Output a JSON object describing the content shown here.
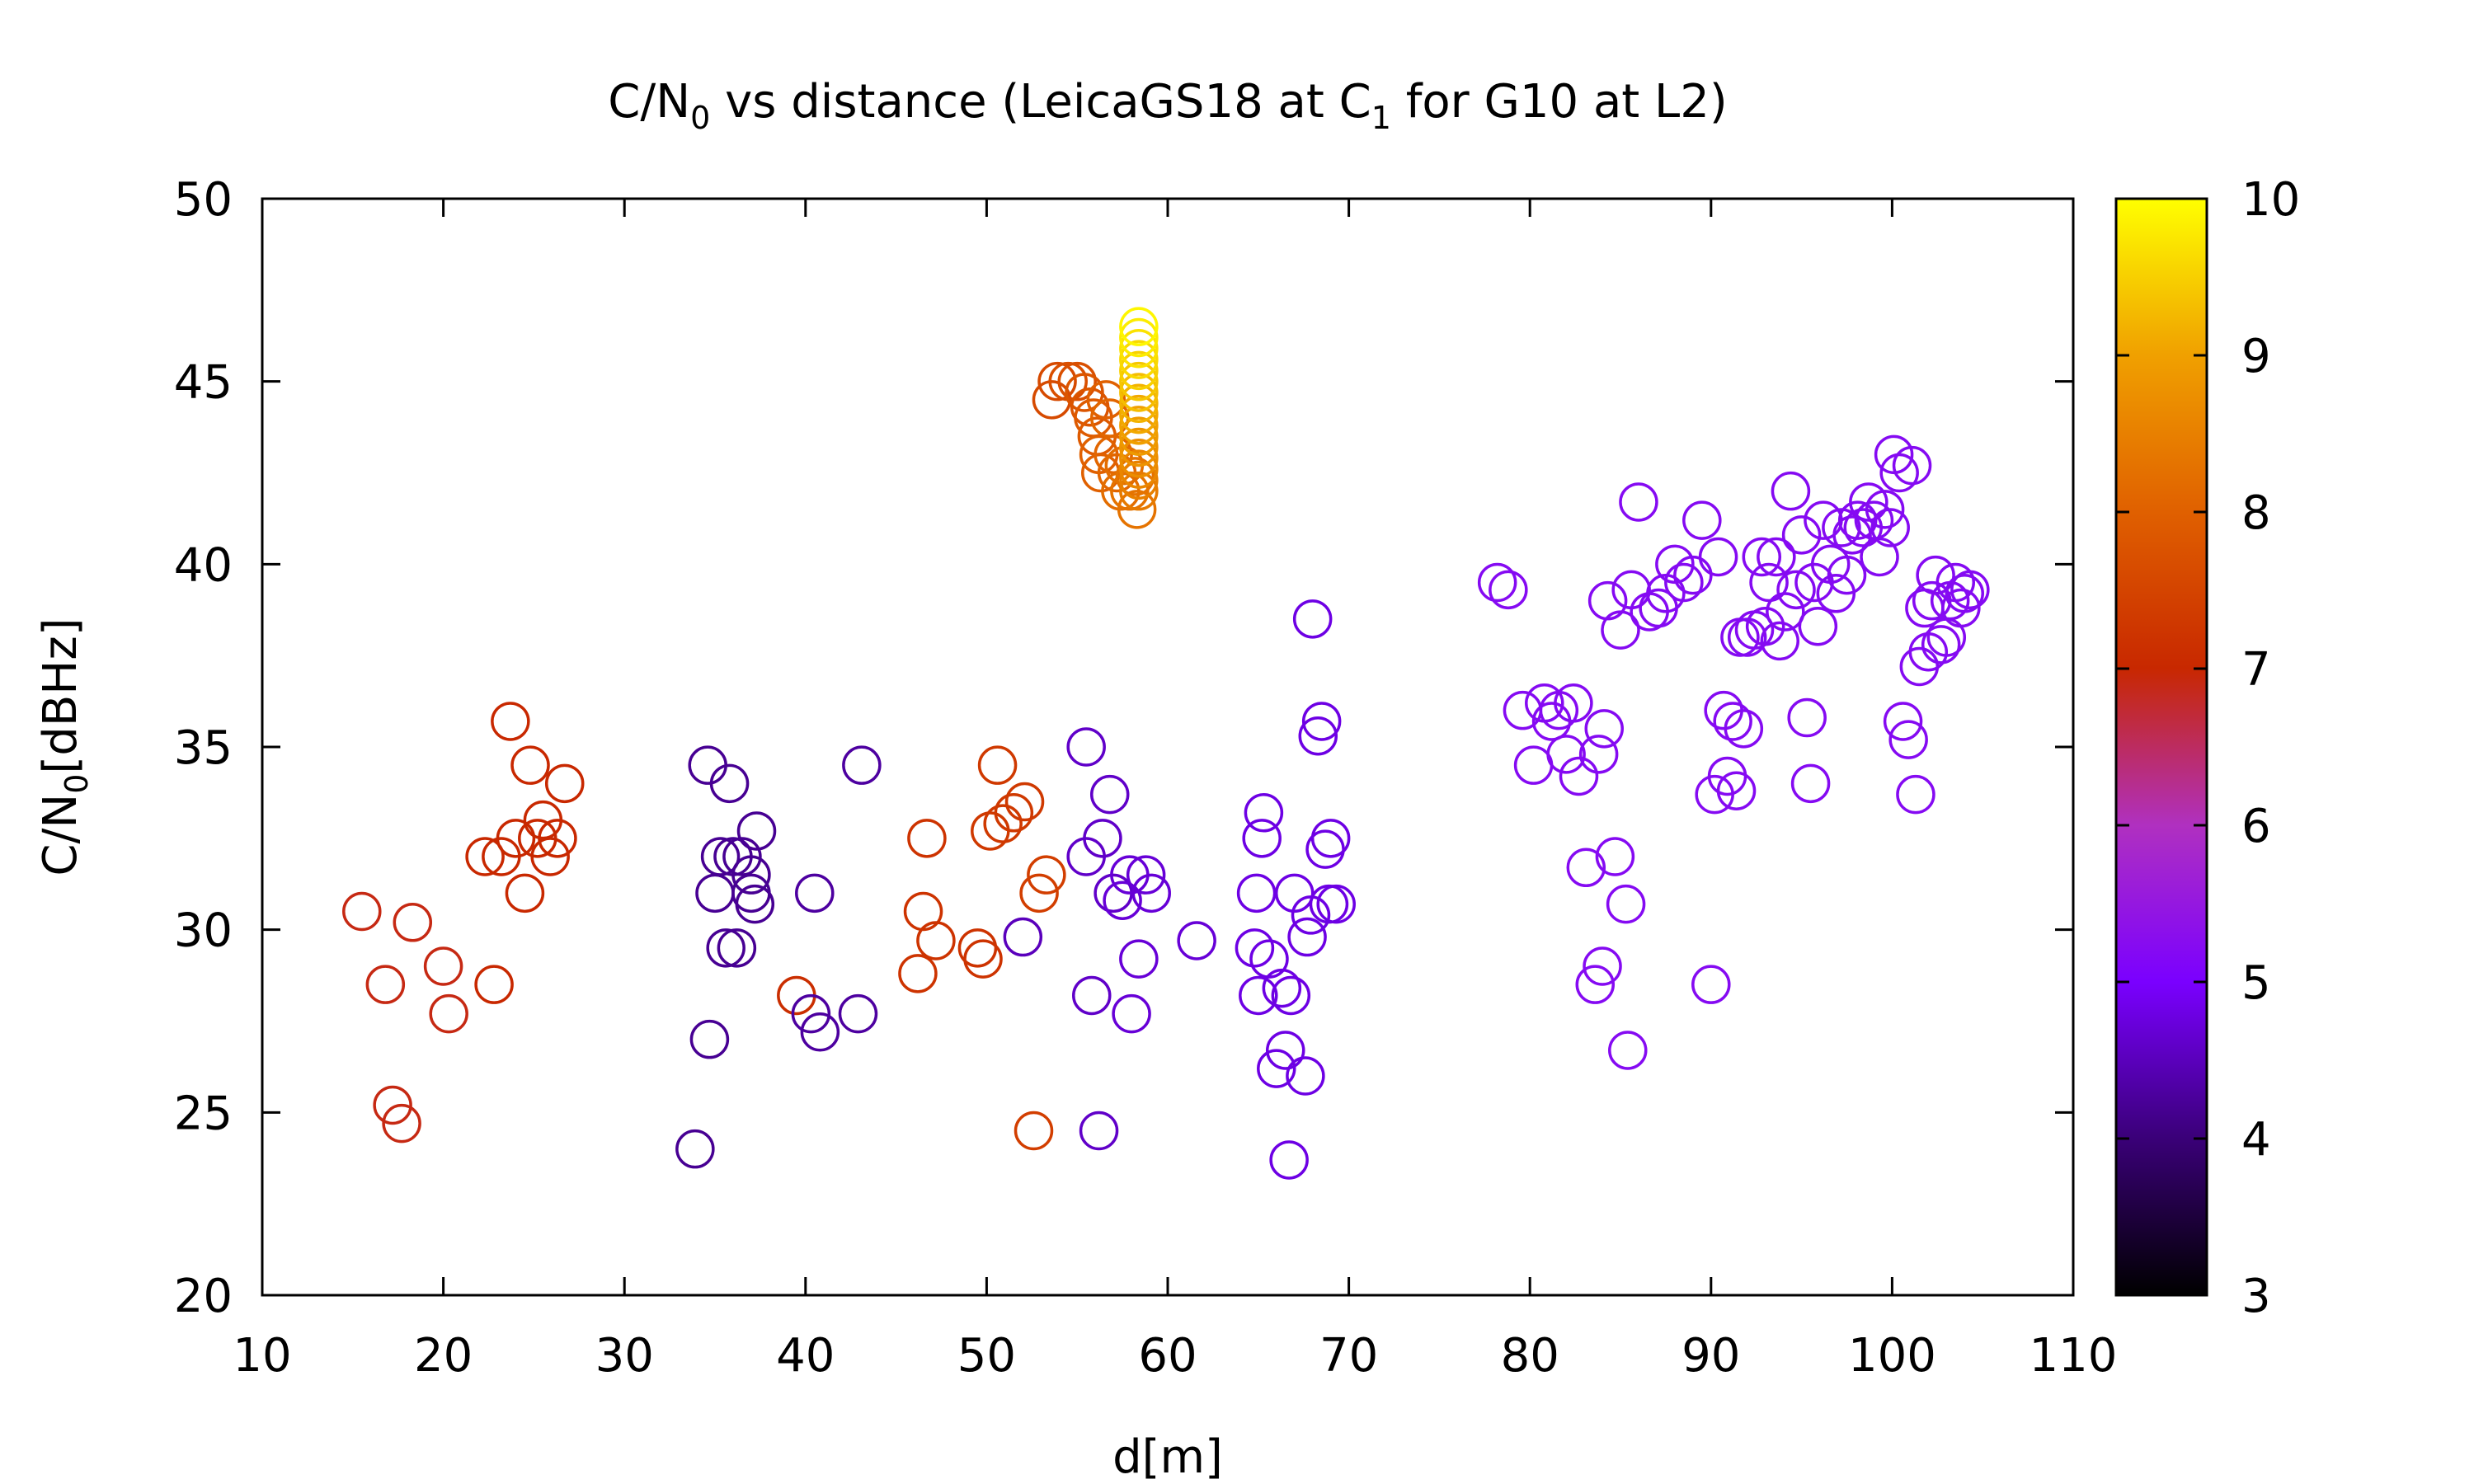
{
  "chart_data": {
    "type": "scatter",
    "title": {
      "prefix": "C/N",
      "sub0": "0",
      "mid": " vs distance (LeicaGS18 at C",
      "sub1": "1",
      "suffix": " for G10 at L2)"
    },
    "xlabel": "d[m]",
    "ylabel": {
      "prefix": "C/N",
      "sub": "0",
      "suffix": "[dBHz]"
    },
    "xlim": [
      10,
      110
    ],
    "ylim": [
      20,
      50
    ],
    "xticks": [
      "10",
      "20",
      "30",
      "40",
      "50",
      "60",
      "70",
      "80",
      "90",
      "100",
      "110"
    ],
    "yticks": [
      "20",
      "25",
      "30",
      "35",
      "40",
      "45",
      "50"
    ],
    "colorbar": {
      "range": [
        3,
        10
      ],
      "ticks": [
        "3",
        "4",
        "5",
        "6",
        "7",
        "8",
        "9",
        "10"
      ],
      "palette": [
        "#000000",
        "#3a0078",
        "#7a00ff",
        "#b030c0",
        "#c82800",
        "#e06000",
        "#f0a000",
        "#ffff00"
      ]
    },
    "marker": "open-circle",
    "grid": false,
    "points": [
      [
        15.5,
        30.5,
        6.9
      ],
      [
        16.8,
        28.5,
        6.9
      ],
      [
        17.2,
        25.2,
        6.9
      ],
      [
        17.7,
        24.7,
        6.9
      ],
      [
        18.3,
        30.2,
        6.9
      ],
      [
        20.0,
        29.0,
        6.9
      ],
      [
        20.3,
        27.7,
        6.9
      ],
      [
        22.3,
        32.0,
        7.0
      ],
      [
        22.8,
        28.5,
        7.0
      ],
      [
        23.2,
        32.0,
        7.0
      ],
      [
        23.7,
        35.7,
        7.0
      ],
      [
        24.0,
        32.5,
        7.0
      ],
      [
        24.5,
        31.0,
        7.0
      ],
      [
        24.8,
        34.5,
        7.0
      ],
      [
        25.2,
        32.5,
        7.0
      ],
      [
        25.5,
        33.0,
        7.0
      ],
      [
        25.9,
        32.0,
        7.0
      ],
      [
        26.3,
        32.5,
        7.0
      ],
      [
        26.7,
        34.0,
        7.0
      ],
      [
        33.9,
        24.0,
        4.2
      ],
      [
        34.6,
        34.5,
        4.2
      ],
      [
        34.7,
        27.0,
        4.2
      ],
      [
        35.0,
        31.0,
        4.2
      ],
      [
        35.3,
        32.0,
        4.2
      ],
      [
        35.6,
        29.5,
        4.2
      ],
      [
        35.8,
        34.0,
        4.2
      ],
      [
        36.0,
        32.0,
        4.2
      ],
      [
        36.2,
        29.5,
        4.2
      ],
      [
        36.5,
        32.0,
        4.2
      ],
      [
        37.0,
        31.5,
        4.2
      ],
      [
        37.0,
        31.0,
        4.2
      ],
      [
        37.2,
        30.7,
        4.2
      ],
      [
        37.3,
        32.7,
        4.2
      ],
      [
        39.5,
        28.2,
        7.1
      ],
      [
        40.3,
        27.7,
        4.3
      ],
      [
        40.5,
        31.0,
        4.3
      ],
      [
        40.8,
        27.2,
        4.3
      ],
      [
        42.9,
        27.7,
        4.3
      ],
      [
        43.1,
        34.5,
        4.3
      ],
      [
        46.2,
        28.8,
        7.2
      ],
      [
        46.5,
        30.5,
        7.2
      ],
      [
        46.7,
        32.5,
        7.2
      ],
      [
        47.2,
        29.7,
        7.2
      ],
      [
        49.5,
        29.5,
        7.2
      ],
      [
        49.8,
        29.2,
        7.2
      ],
      [
        50.2,
        32.7,
        7.3
      ],
      [
        50.6,
        34.5,
        7.3
      ],
      [
        50.9,
        32.9,
        7.3
      ],
      [
        51.5,
        33.2,
        7.3
      ],
      [
        52.1,
        33.5,
        7.3
      ],
      [
        52.0,
        29.8,
        4.5
      ],
      [
        52.6,
        24.5,
        7.4
      ],
      [
        52.9,
        31.0,
        7.4
      ],
      [
        53.3,
        31.5,
        7.4
      ],
      [
        53.6,
        44.5,
        7.6
      ],
      [
        53.9,
        45.0,
        7.6
      ],
      [
        54.5,
        45.0,
        7.7
      ],
      [
        55.0,
        45.0,
        7.7
      ],
      [
        55.4,
        44.7,
        7.8
      ],
      [
        55.7,
        44.3,
        7.8
      ],
      [
        55.9,
        44.0,
        7.9
      ],
      [
        56.1,
        43.5,
        7.9
      ],
      [
        56.2,
        43.0,
        8.0
      ],
      [
        56.3,
        42.5,
        8.0
      ],
      [
        56.6,
        44.5,
        8.0
      ],
      [
        56.8,
        44.0,
        8.1
      ],
      [
        57.0,
        43.0,
        8.1
      ],
      [
        57.2,
        42.5,
        8.1
      ],
      [
        57.4,
        42.0,
        8.2
      ],
      [
        57.6,
        42.7,
        8.2
      ],
      [
        57.9,
        42.0,
        8.3
      ],
      [
        58.2,
        42.4,
        8.3
      ],
      [
        58.3,
        41.5,
        8.3
      ],
      [
        58.4,
        42.0,
        8.4
      ],
      [
        58.4,
        42.3,
        8.5
      ],
      [
        58.4,
        42.6,
        8.6
      ],
      [
        58.4,
        42.9,
        8.7
      ],
      [
        58.4,
        43.2,
        8.8
      ],
      [
        58.4,
        43.5,
        8.9
      ],
      [
        58.4,
        43.8,
        9.0
      ],
      [
        58.4,
        44.1,
        9.1
      ],
      [
        58.4,
        44.4,
        9.2
      ],
      [
        58.4,
        44.7,
        9.3
      ],
      [
        58.4,
        45.0,
        9.4
      ],
      [
        58.4,
        45.3,
        9.5
      ],
      [
        58.4,
        45.6,
        9.6
      ],
      [
        58.4,
        45.9,
        9.7
      ],
      [
        58.4,
        46.2,
        9.8
      ],
      [
        58.4,
        46.5,
        9.9
      ],
      [
        55.5,
        35.0,
        4.6
      ],
      [
        55.5,
        32.0,
        4.6
      ],
      [
        55.8,
        28.2,
        4.6
      ],
      [
        56.2,
        24.5,
        4.6
      ],
      [
        56.4,
        32.5,
        4.6
      ],
      [
        56.8,
        33.7,
        4.6
      ],
      [
        57.0,
        31.0,
        4.6
      ],
      [
        57.5,
        30.8,
        4.7
      ],
      [
        57.9,
        31.5,
        4.7
      ],
      [
        58.0,
        27.7,
        4.7
      ],
      [
        58.4,
        29.2,
        4.7
      ],
      [
        58.8,
        31.5,
        4.7
      ],
      [
        59.1,
        31.0,
        4.7
      ],
      [
        61.6,
        29.7,
        4.7
      ],
      [
        64.8,
        29.5,
        4.8
      ],
      [
        64.9,
        31.0,
        4.8
      ],
      [
        65.0,
        28.2,
        4.8
      ],
      [
        65.2,
        32.5,
        4.8
      ],
      [
        65.3,
        33.2,
        4.8
      ],
      [
        65.6,
        29.2,
        4.8
      ],
      [
        66.0,
        26.2,
        4.8
      ],
      [
        66.3,
        28.4,
        4.8
      ],
      [
        66.5,
        26.7,
        4.8
      ],
      [
        66.7,
        23.7,
        4.8
      ],
      [
        66.8,
        28.2,
        4.8
      ],
      [
        67.0,
        31.0,
        4.8
      ],
      [
        67.6,
        26.0,
        4.8
      ],
      [
        67.7,
        29.8,
        4.8
      ],
      [
        67.9,
        30.4,
        4.8
      ],
      [
        68.0,
        38.5,
        4.8
      ],
      [
        68.3,
        35.3,
        4.8
      ],
      [
        68.5,
        35.7,
        4.8
      ],
      [
        68.7,
        32.2,
        4.8
      ],
      [
        68.9,
        30.7,
        4.8
      ],
      [
        69.0,
        32.5,
        4.8
      ],
      [
        69.3,
        30.7,
        4.8
      ],
      [
        78.2,
        39.5,
        5.2
      ],
      [
        78.8,
        39.3,
        5.2
      ],
      [
        79.6,
        36.0,
        5.2
      ],
      [
        80.2,
        34.5,
        5.2
      ],
      [
        80.8,
        36.2,
        5.2
      ],
      [
        81.2,
        35.7,
        5.2
      ],
      [
        81.6,
        36.0,
        5.2
      ],
      [
        82.0,
        34.8,
        5.2
      ],
      [
        82.4,
        36.2,
        5.2
      ],
      [
        82.7,
        34.2,
        5.2
      ],
      [
        83.1,
        31.7,
        5.2
      ],
      [
        83.6,
        28.5,
        5.2
      ],
      [
        83.8,
        34.8,
        5.2
      ],
      [
        84.0,
        29.0,
        5.2
      ],
      [
        84.1,
        35.5,
        5.2
      ],
      [
        84.3,
        39.0,
        5.2
      ],
      [
        84.7,
        32.0,
        5.2
      ],
      [
        85.0,
        38.2,
        5.2
      ],
      [
        85.3,
        30.7,
        5.2
      ],
      [
        85.4,
        26.7,
        5.2
      ],
      [
        85.6,
        39.3,
        5.2
      ],
      [
        86.0,
        41.7,
        5.2
      ],
      [
        86.6,
        38.7,
        5.2
      ],
      [
        87.1,
        38.8,
        5.2
      ],
      [
        87.5,
        39.2,
        5.2
      ],
      [
        88.0,
        40.0,
        5.2
      ],
      [
        88.5,
        39.5,
        5.2
      ],
      [
        89.0,
        39.7,
        5.2
      ],
      [
        89.5,
        41.2,
        5.2
      ],
      [
        90.0,
        28.5,
        5.2
      ],
      [
        90.2,
        33.7,
        5.2
      ],
      [
        90.4,
        40.2,
        5.2
      ],
      [
        90.7,
        36.0,
        5.2
      ],
      [
        90.9,
        34.2,
        5.2
      ],
      [
        91.2,
        35.7,
        5.2
      ],
      [
        91.4,
        33.8,
        5.2
      ],
      [
        91.6,
        38.0,
        5.2
      ],
      [
        91.8,
        35.5,
        5.2
      ],
      [
        92.0,
        38.0,
        5.2
      ],
      [
        92.4,
        38.2,
        5.2
      ],
      [
        92.8,
        40.2,
        5.2
      ],
      [
        93.0,
        38.3,
        5.2
      ],
      [
        93.2,
        39.5,
        5.2
      ],
      [
        93.6,
        40.2,
        5.2
      ],
      [
        93.8,
        37.9,
        5.2
      ],
      [
        94.1,
        38.7,
        5.2
      ],
      [
        94.4,
        42.0,
        5.2
      ],
      [
        94.7,
        39.3,
        5.2
      ],
      [
        95.0,
        40.8,
        5.2
      ],
      [
        95.3,
        35.8,
        5.2
      ],
      [
        95.5,
        34.0,
        5.2
      ],
      [
        95.7,
        39.5,
        5.2
      ],
      [
        95.9,
        38.3,
        5.2
      ],
      [
        96.2,
        41.2,
        5.2
      ],
      [
        96.6,
        40.0,
        5.2
      ],
      [
        96.9,
        39.2,
        5.2
      ],
      [
        97.2,
        41.0,
        5.2
      ],
      [
        97.5,
        39.7,
        5.2
      ],
      [
        97.8,
        40.8,
        5.2
      ],
      [
        98.1,
        41.2,
        5.2
      ],
      [
        98.4,
        41.0,
        5.2
      ],
      [
        98.7,
        41.7,
        5.2
      ],
      [
        99.0,
        41.2,
        5.2
      ],
      [
        99.3,
        40.2,
        5.2
      ],
      [
        99.6,
        41.5,
        5.2
      ],
      [
        99.9,
        41.0,
        5.2
      ],
      [
        100.1,
        43.0,
        5.2
      ],
      [
        100.4,
        42.5,
        5.2
      ],
      [
        100.6,
        35.7,
        5.2
      ],
      [
        100.9,
        35.2,
        5.2
      ],
      [
        101.1,
        42.7,
        5.2
      ],
      [
        101.3,
        33.7,
        5.2
      ],
      [
        101.5,
        37.2,
        5.2
      ],
      [
        101.8,
        38.8,
        5.2
      ],
      [
        102.0,
        37.6,
        5.2
      ],
      [
        102.2,
        39.0,
        5.2
      ],
      [
        102.4,
        39.7,
        5.2
      ],
      [
        102.7,
        37.8,
        5.2
      ],
      [
        103.0,
        38.0,
        5.2
      ],
      [
        103.2,
        39.0,
        5.2
      ],
      [
        103.5,
        39.5,
        5.2
      ],
      [
        103.8,
        38.8,
        5.2
      ],
      [
        104.0,
        39.2,
        5.2
      ],
      [
        104.3,
        39.3,
        5.2
      ]
    ]
  }
}
